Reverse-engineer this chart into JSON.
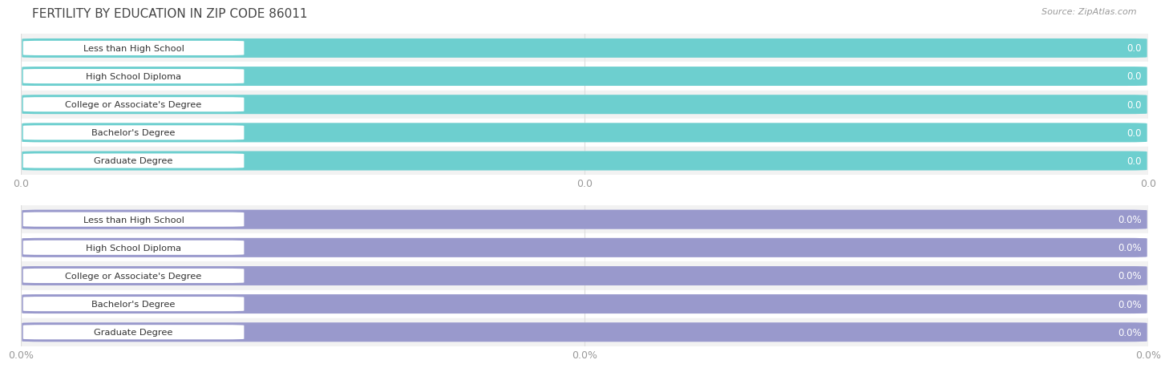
{
  "title": "FERTILITY BY EDUCATION IN ZIP CODE 86011",
  "source": "Source: ZipAtlas.com",
  "categories": [
    "Less than High School",
    "High School Diploma",
    "College or Associate's Degree",
    "Bachelor's Degree",
    "Graduate Degree"
  ],
  "values_top": [
    0.0,
    0.0,
    0.0,
    0.0,
    0.0
  ],
  "values_bottom": [
    0.0,
    0.0,
    0.0,
    0.0,
    0.0
  ],
  "top_bar_color": "#6DCFCF",
  "top_bar_bg": "#C8E8E8",
  "bottom_bar_color": "#9999CC",
  "bottom_bar_bg": "#CDCDEA",
  "bar_text_color": "#555555",
  "axis_tick_color": "#999999",
  "background_color": "#FFFFFF",
  "grid_color": "#DDDDDD",
  "title_color": "#444444",
  "source_color": "#999999",
  "xtick_labels_top": [
    "0.0",
    "0.0",
    "0.0"
  ],
  "xtick_labels_bottom": [
    "0.0%",
    "0.0%",
    "0.0%"
  ],
  "title_fontsize": 11,
  "bar_height": 0.68,
  "row_bg_even": "#F2F2F2",
  "row_bg_odd": "#FFFFFF"
}
